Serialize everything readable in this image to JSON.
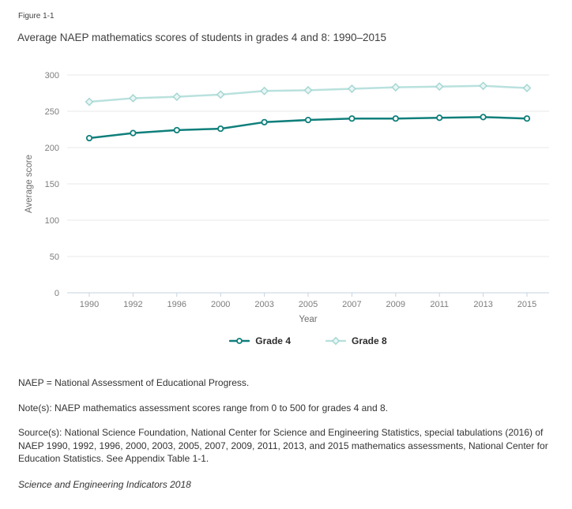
{
  "figure_label": "Figure 1-1",
  "title": "Average NAEP mathematics scores of students in grades 4 and 8: 1990–2015",
  "chart_data": {
    "type": "line",
    "categories": [
      "1990",
      "1992",
      "1996",
      "2000",
      "2003",
      "2005",
      "2007",
      "2009",
      "2011",
      "2013",
      "2015"
    ],
    "series": [
      {
        "name": "Grade 4",
        "values": [
          213,
          220,
          224,
          226,
          235,
          238,
          240,
          240,
          241,
          242,
          240
        ],
        "color": "#0f7f7b",
        "marker": "circle",
        "marker_fill": "#ffffff",
        "marker_stroke": "#0f7f7b"
      },
      {
        "name": "Grade 8",
        "values": [
          263,
          268,
          270,
          273,
          278,
          279,
          281,
          283,
          284,
          285,
          282
        ],
        "color": "#b9e1de",
        "marker": "diamond",
        "marker_fill": "#e9f6f5",
        "marker_stroke": "#a6d7d3"
      }
    ],
    "title": "Average NAEP mathematics scores of students in grades 4 and 8: 1990–2015",
    "xlabel": "Year",
    "ylabel": "Average score",
    "ylim": [
      0,
      300
    ],
    "ytick_step": 50,
    "grid": true,
    "legend_position": "bottom"
  },
  "colors": {
    "grade4": "#0f7f7b",
    "grade8": "#b9e1de",
    "grid_line": "#e8e8e8",
    "axis_line": "#c5d3e0",
    "tick_label": "#7d7d7d",
    "title_text": "#3f3f3f",
    "footer_text": "#333333"
  },
  "footer": {
    "abbreviation": "NAEP = National Assessment of Educational Progress.",
    "notes": "Note(s): NAEP mathematics assessment scores range from 0 to 500 for grades 4 and 8.",
    "sources": "Source(s): National Science Foundation, National Center for Science and Engineering Statistics, special tabulations (2016) of NAEP 1990, 1992, 1996, 2000, 2003, 2005, 2007, 2009, 2011, 2013, and 2015 mathematics assessments, National Center for Education Statistics. See Appendix Table 1-1.",
    "publication": "Science and Engineering Indicators 2018"
  }
}
